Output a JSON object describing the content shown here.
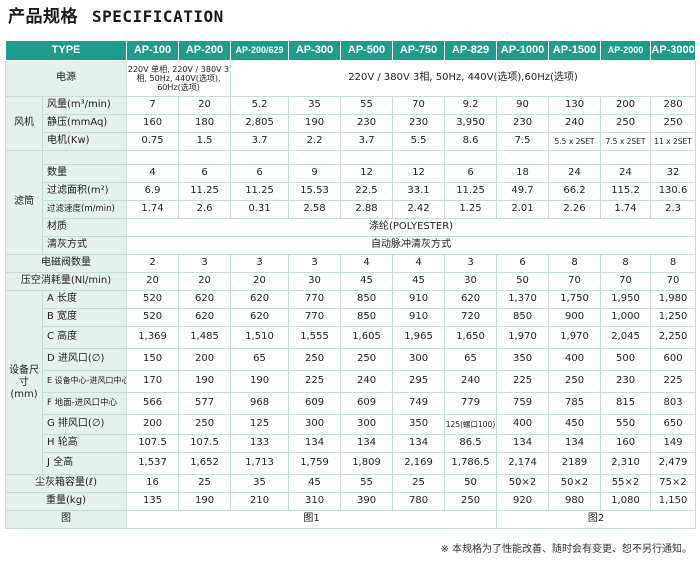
{
  "title": {
    "cn": "产品规格",
    "en": "SPECIFICATION"
  },
  "header": {
    "type_label": "TYPE",
    "models": [
      "AP-100",
      "AP-200",
      "AP-200/629",
      "AP-300",
      "AP-500",
      "AP-750",
      "AP-829",
      "AP-1000",
      "AP-1500",
      "AP-2000",
      "AP-3000"
    ]
  },
  "power": {
    "label": "电源",
    "small_models": "220V 单相, 220V / 380V 3相, 50Hz, 440V(选项), 60Hz(选项)",
    "others": "220V / 380V 3相, 50Hz, 440V(选项),60Hz(选项)"
  },
  "fan": {
    "group": "风机",
    "airflow": {
      "label": "风量(m³/min)",
      "values": [
        "7",
        "20",
        "5.2",
        "35",
        "55",
        "70",
        "9.2",
        "90",
        "130",
        "200",
        "280"
      ]
    },
    "static_pressure": {
      "label": "静压(mmAq)",
      "values": [
        "160",
        "180",
        "2,805",
        "190",
        "230",
        "230",
        "3,950",
        "230",
        "240",
        "250",
        "250"
      ]
    },
    "motor": {
      "label": "电机(Kw)",
      "values": [
        "0.75",
        "1.5",
        "3.7",
        "2.2",
        "3.7",
        "5.5",
        "8.6",
        "7.5",
        "5.5 x 2SET",
        "7.5 x 2SET",
        "11 x 2SET"
      ]
    }
  },
  "filter": {
    "group": "滤筒",
    "count": {
      "label": "数量",
      "values": [
        "4",
        "6",
        "6",
        "9",
        "12",
        "12",
        "6",
        "18",
        "24",
        "24",
        "32"
      ]
    },
    "area": {
      "label": "过滤面积(m²)",
      "values": [
        "6.9",
        "11.25",
        "11.25",
        "15.53",
        "22.5",
        "33.1",
        "11.25",
        "49.7",
        "66.2",
        "115.2",
        "130.6"
      ]
    },
    "velocity": {
      "label": "过滤速度(m/min)",
      "values": [
        "1.74",
        "2.6",
        "0.31",
        "2.58",
        "2.88",
        "2.42",
        "1.25",
        "2.01",
        "2.26",
        "1.74",
        "2.3"
      ]
    },
    "material": {
      "label": "材质",
      "value": "涤纶(POLYESTER)"
    },
    "cleaning": {
      "label": "清灰方式",
      "value": "自动脉冲清灰方式"
    }
  },
  "solenoid": {
    "label": "电磁阀数量",
    "values": [
      "2",
      "3",
      "3",
      "3",
      "4",
      "4",
      "3",
      "6",
      "8",
      "8",
      "8"
    ]
  },
  "air_consumption": {
    "label": "压空消耗量(Nl/min)",
    "values": [
      "20",
      "20",
      "20",
      "30",
      "45",
      "45",
      "30",
      "50",
      "70",
      "70",
      "70"
    ]
  },
  "dimensions": {
    "group": "设备尺寸(mm)",
    "rows": [
      {
        "label": "A 长度",
        "values": [
          "520",
          "620",
          "620",
          "770",
          "850",
          "910",
          "620",
          "1,370",
          "1,750",
          "1,950",
          "1,980"
        ]
      },
      {
        "label": "B 宽度",
        "values": [
          "520",
          "620",
          "620",
          "770",
          "850",
          "910",
          "720",
          "850",
          "900",
          "1,000",
          "1,250"
        ]
      },
      {
        "label": "C 高度",
        "values": [
          "1,369",
          "1,485",
          "1,510",
          "1,555",
          "1,605",
          "1,965",
          "1,650",
          "1,970",
          "1,970",
          "2,045",
          "2,250"
        ]
      },
      {
        "label": "D 进风口(∅)",
        "values": [
          "150",
          "200",
          "65",
          "250",
          "250",
          "300",
          "65",
          "350",
          "400",
          "500",
          "600"
        ]
      },
      {
        "label": "E 设备中心-进风口中心",
        "values": [
          "170",
          "190",
          "190",
          "225",
          "240",
          "295",
          "240",
          "225",
          "250",
          "230",
          "225"
        ]
      },
      {
        "label": "F 地面-进风口中心",
        "values": [
          "566",
          "577",
          "968",
          "609",
          "609",
          "749",
          "779",
          "759",
          "785",
          "815",
          "803"
        ]
      },
      {
        "label": "G 排风口(∅)",
        "values": [
          "200",
          "250",
          "125",
          "300",
          "300",
          "350",
          "125(螺口100)",
          "400",
          "450",
          "550",
          "650"
        ]
      },
      {
        "label": "H 轮高",
        "values": [
          "107.5",
          "107.5",
          "133",
          "134",
          "134",
          "134",
          "86.5",
          "134",
          "134",
          "160",
          "149"
        ]
      },
      {
        "label": "J 全高",
        "values": [
          "1,537",
          "1,652",
          "1,713",
          "1,759",
          "1,809",
          "2,169",
          "1,786.5",
          "2,174",
          "2189",
          "2,310",
          "2,479"
        ]
      }
    ]
  },
  "dust_box": {
    "label": "尘灰箱容量(ℓ)",
    "values": [
      "16",
      "25",
      "35",
      "45",
      "55",
      "25",
      "50",
      "50×2",
      "50×2",
      "55×2",
      "75×2"
    ]
  },
  "weight": {
    "label": "重量(kg)",
    "values": [
      "135",
      "190",
      "210",
      "310",
      "390",
      "780",
      "250",
      "920",
      "980",
      "1,080",
      "1,150"
    ]
  },
  "figure": {
    "label": "图",
    "fig1": "图1",
    "fig2": "图2"
  },
  "footnote": "※ 本规格为了性能改善、随时会有变更、恕不另行通知。"
}
